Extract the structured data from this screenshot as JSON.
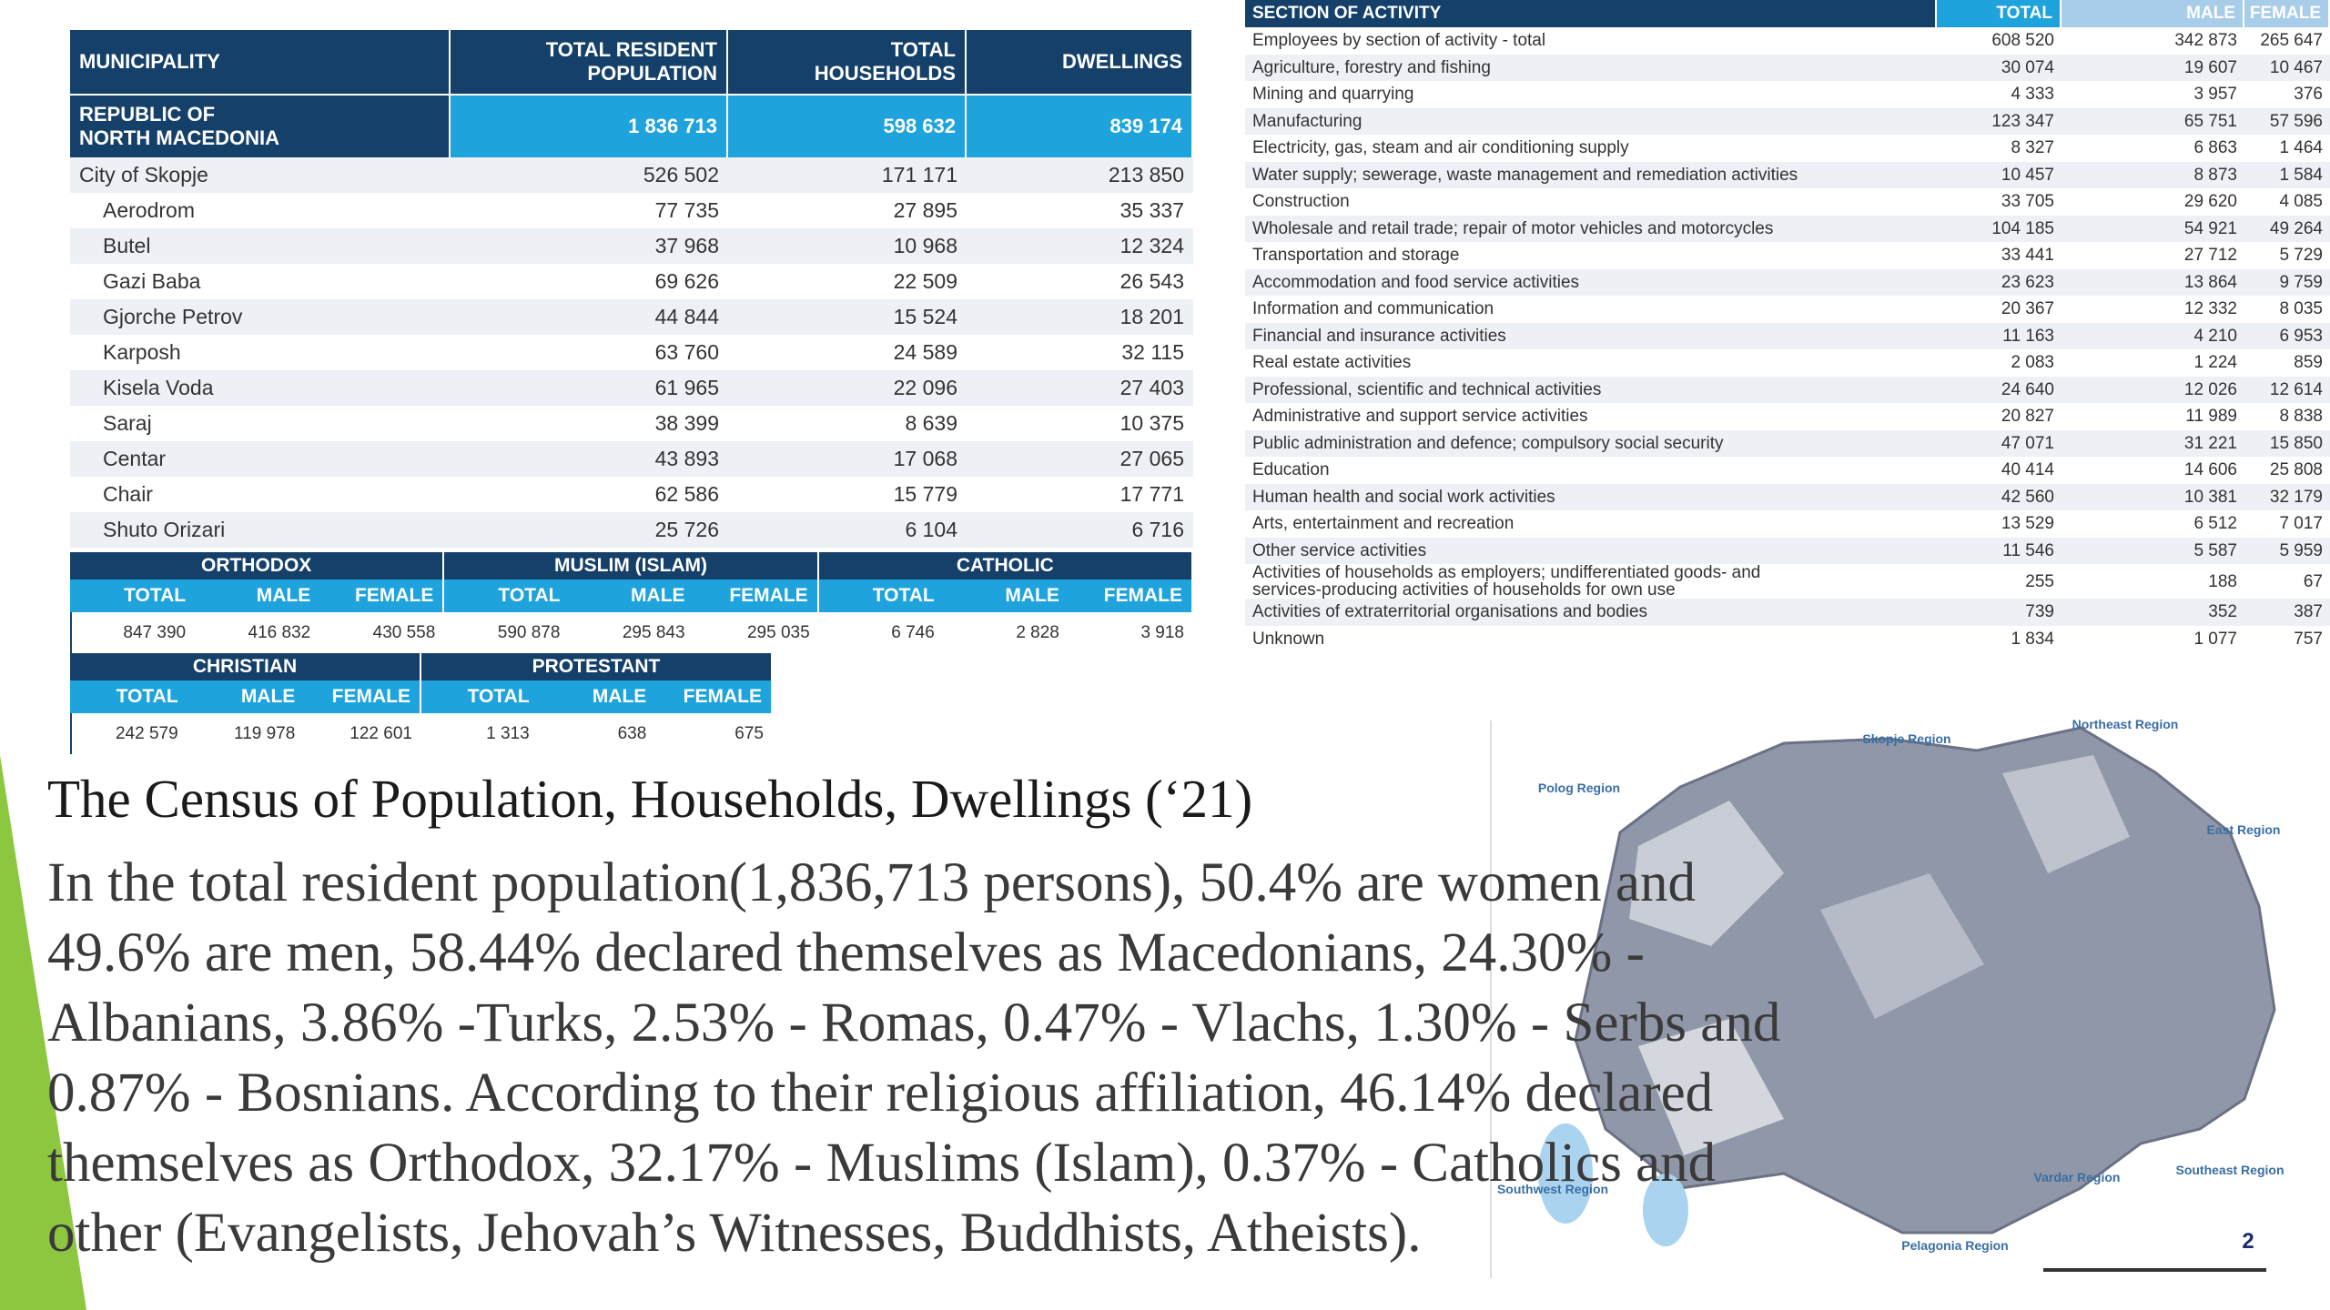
{
  "municipality_table": {
    "headers": [
      "MUNICIPALITY",
      "TOTAL RESIDENT POPULATION",
      "TOTAL HOUSEHOLDS",
      "DWELLINGS"
    ],
    "total_row": [
      "REPUBLIC OF NORTH MACEDONIA",
      "1 836 713",
      "598 632",
      "839 174"
    ],
    "rows": [
      [
        "City of Skopje",
        "526 502",
        "171 171",
        "213 850"
      ],
      [
        "Aerodrom",
        "77 735",
        "27 895",
        "35 337"
      ],
      [
        "Butel",
        "37 968",
        "10 968",
        "12 324"
      ],
      [
        "Gazi Baba",
        "69 626",
        "22 509",
        "26 543"
      ],
      [
        "Gjorche Petrov",
        "44 844",
        "15 524",
        "18 201"
      ],
      [
        "Karposh",
        "63 760",
        "24 589",
        "32 115"
      ],
      [
        "Kisela Voda",
        "61 965",
        "22 096",
        "27 403"
      ],
      [
        "Saraj",
        "38 399",
        "8 639",
        "10 375"
      ],
      [
        "Centar",
        "43 893",
        "17 068",
        "27 065"
      ],
      [
        "Chair",
        "62 586",
        "15 779",
        "17 771"
      ],
      [
        "Shuto Orizari",
        "25 726",
        "6 104",
        "6 716"
      ]
    ]
  },
  "religion_table_1": {
    "groups": [
      "ORTHODOX",
      "MUSLIM (ISLAM)",
      "CATHOLIC"
    ],
    "subheaders": [
      "TOTAL",
      "MALE",
      "FEMALE",
      "TOTAL",
      "MALE",
      "FEMALE",
      "TOTAL",
      "MALE",
      "FEMALE"
    ],
    "values": [
      "847 390",
      "416 832",
      "430 558",
      "590 878",
      "295 843",
      "295 035",
      "6 746",
      "2 828",
      "3 918"
    ]
  },
  "religion_table_2": {
    "groups": [
      "CHRISTIAN",
      "PROTESTANT"
    ],
    "subheaders": [
      "TOTAL",
      "MALE",
      "FEMALE",
      "TOTAL",
      "MALE",
      "FEMALE"
    ],
    "values": [
      "242 579",
      "119 978",
      "122 601",
      "1 313",
      "638",
      "675"
    ]
  },
  "activity_table": {
    "headers": [
      "SECTION OF ACTIVITY",
      "TOTAL",
      "MALE",
      "FEMALE"
    ],
    "rows": [
      [
        "Employees by section of activity - total",
        "608 520",
        "342 873",
        "265 647"
      ],
      [
        "Agriculture, forestry and fishing",
        "30 074",
        "19 607",
        "10 467"
      ],
      [
        "Mining and quarrying",
        "4 333",
        "3 957",
        "376"
      ],
      [
        "Manufacturing",
        "123 347",
        "65 751",
        "57 596"
      ],
      [
        "Electricity, gas, steam and air conditioning supply",
        "8 327",
        "6 863",
        "1 464"
      ],
      [
        "Water supply; sewerage, waste management and remediation activities",
        "10 457",
        "8 873",
        "1 584"
      ],
      [
        "Construction",
        "33 705",
        "29 620",
        "4 085"
      ],
      [
        "Wholesale and retail trade; repair of motor vehicles and motorcycles",
        "104 185",
        "54 921",
        "49 264"
      ],
      [
        "Transportation and storage",
        "33 441",
        "27 712",
        "5 729"
      ],
      [
        "Accommodation and food service activities",
        "23 623",
        "13 864",
        "9 759"
      ],
      [
        "Information and communication",
        "20 367",
        "12 332",
        "8 035"
      ],
      [
        "Financial and insurance activities",
        "11 163",
        "4 210",
        "6 953"
      ],
      [
        "Real estate activities",
        "2 083",
        "1 224",
        "859"
      ],
      [
        "Professional, scientific and technical activities",
        "24 640",
        "12 026",
        "12 614"
      ],
      [
        "Administrative and support service activities",
        "20 827",
        "11 989",
        "8 838"
      ],
      [
        "Public administration and defence; compulsory social security",
        "47 071",
        "31 221",
        "15 850"
      ],
      [
        "Education",
        "40 414",
        "14 606",
        "25 808"
      ],
      [
        "Human health and social work activities",
        "42 560",
        "10 381",
        "32 179"
      ],
      [
        "Arts, entertainment and recreation",
        "13 529",
        "6 512",
        "7 017"
      ],
      [
        "Other service activities",
        "11 546",
        "5 587",
        "5 959"
      ],
      [
        "Activities of households as employers; undifferentiated goods- and services-producing activities of households for own use",
        "255",
        "188",
        "67"
      ],
      [
        "Activities of extraterritorial organisations and bodies",
        "739",
        "352",
        "387"
      ],
      [
        "Unknown",
        "1 834",
        "1 077",
        "757"
      ]
    ]
  },
  "slide": {
    "title": "The Census of Population, Households, Dwellings (‘21)",
    "body_lines": [
      "In the total resident population(1,836,713 persons), 50.4% are women and",
      "49.6% are men, 58.44% declared themselves as Macedonians, 24.30% -",
      "Albanians, 3.86% -Turks, 2.53% - Romas, 0.47% - Vlachs, 1.30% - Serbs and",
      "0.87% - Bosnians. According to their religious affiliation, 46.14% declared",
      "themselves as Orthodox, 32.17% - Muslims (Islam), 0.37% - Catholics and",
      "other (Evangelists, Jehovah’s Witnesses, Buddhists, Atheists)."
    ],
    "page_number": "2"
  },
  "map": {
    "labels": [
      "Skopje Region",
      "Polog Region",
      "Northeast Region",
      "East Region",
      "Southeast Region",
      "Vardar Region",
      "Pelagonia Region",
      "Southwest Region"
    ]
  }
}
